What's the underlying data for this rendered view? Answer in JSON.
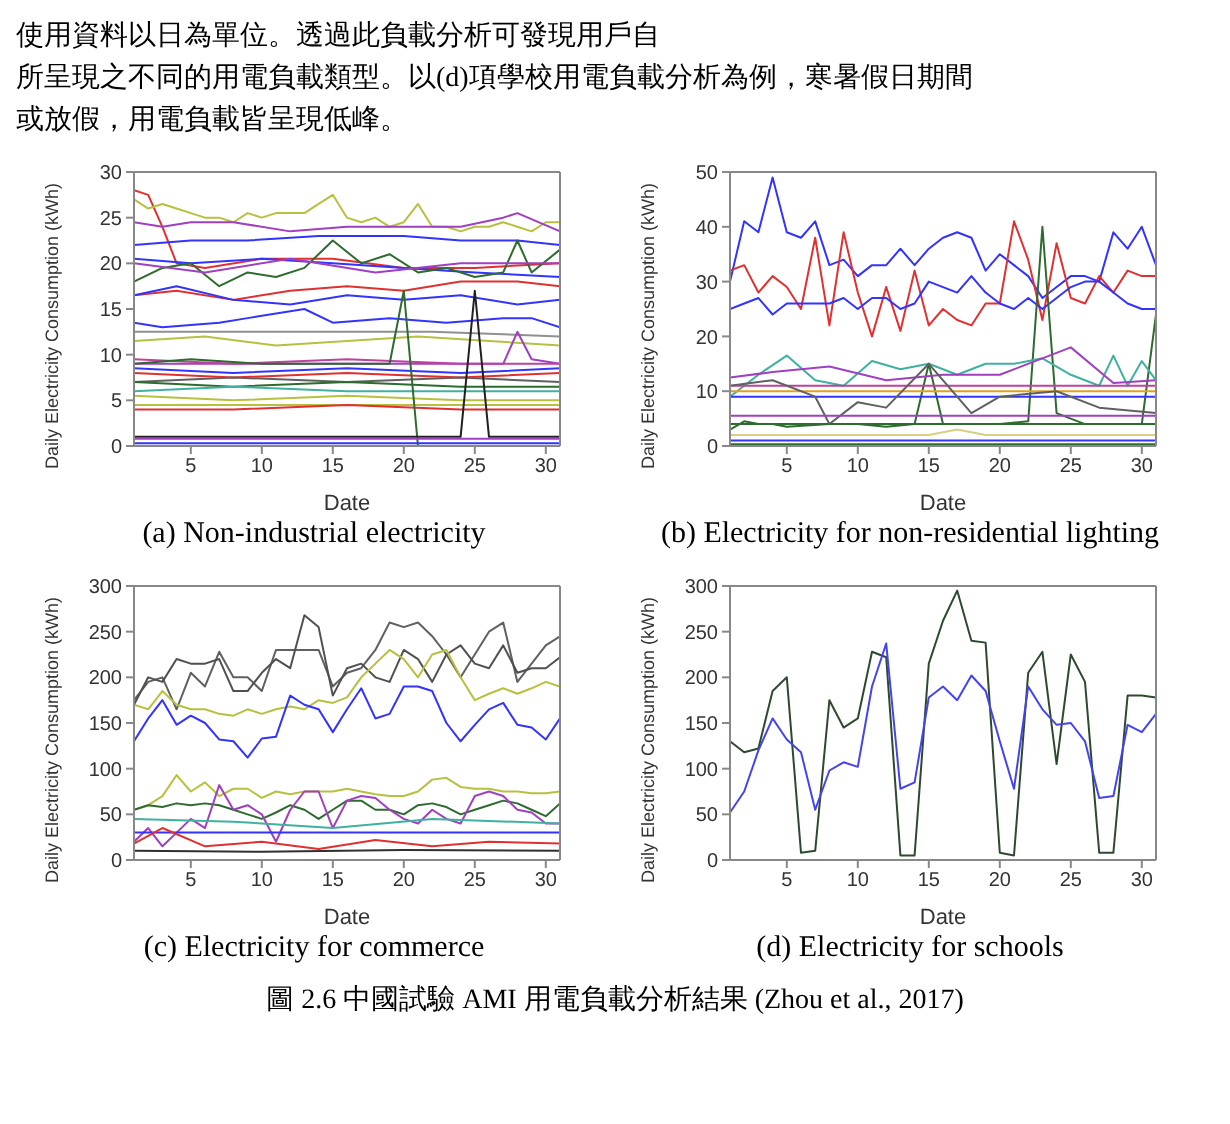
{
  "chart_data": [
    {
      "type": "line",
      "title": "(a) Non-industrial electricity",
      "xlabel": "Date",
      "ylabel": "Daily Electricity Consumption (kWh)",
      "xlim": [
        1,
        31
      ],
      "xticks": [
        5,
        10,
        15,
        20,
        25,
        30
      ],
      "ylim": [
        0,
        30
      ],
      "yticks": [
        0,
        5,
        10,
        15,
        20,
        25,
        30
      ],
      "annotations": [
        "使用資料以日為單位。透過此負載分析可發現用戶自",
        "所呈現之不同的用電負載類型。以(d)項學校用電負載分析為例，寒暑假日期間",
        "或放假，用電負載皆呈現低峰。"
      ],
      "x": [
        1,
        2,
        3,
        4,
        5,
        6,
        7,
        8,
        9,
        10,
        11,
        12,
        13,
        14,
        15,
        16,
        17,
        18,
        19,
        20,
        21,
        22,
        23,
        24,
        25,
        26,
        27,
        28,
        29,
        30,
        31
      ],
      "series": [
        {
          "color": "#e03030",
          "x": [
            1,
            2,
            3,
            4,
            6,
            10,
            15,
            20,
            25,
            31
          ],
          "values": [
            28,
            27.5,
            24,
            20,
            19.5,
            20.5,
            20.5,
            19.5,
            19.5,
            20
          ]
        },
        {
          "color": "#b8c040",
          "values": [
            27,
            26,
            26.5,
            26,
            25.5,
            25,
            25,
            24.5,
            25.5,
            25,
            25.5,
            25.5,
            25.5,
            26.5,
            27.5,
            25,
            24.5,
            25,
            24,
            24.5,
            26.5,
            24,
            24,
            23.5,
            24,
            24,
            24.5,
            24,
            23.5,
            24.5,
            24.5
          ]
        },
        {
          "color": "#a040c0",
          "x": [
            1,
            3,
            5,
            8,
            12,
            16,
            20,
            24,
            27,
            28,
            31
          ],
          "values": [
            24.5,
            24,
            24.5,
            24.5,
            23.5,
            24,
            24,
            24,
            25,
            25.5,
            23.5
          ]
        },
        {
          "color": "#3333ff",
          "x": [
            1,
            5,
            9,
            14,
            20,
            24,
            28,
            31
          ],
          "values": [
            22,
            22.5,
            22.5,
            23,
            23,
            22.5,
            22.5,
            22
          ]
        },
        {
          "color": "#3333ff",
          "x": [
            1,
            5,
            10,
            15,
            20,
            25,
            31
          ],
          "values": [
            20.5,
            20,
            20.5,
            20,
            19.5,
            19,
            18.5
          ]
        },
        {
          "color": "#2e6b2e",
          "x": [
            1,
            3,
            5,
            7,
            9,
            11,
            13,
            15,
            17,
            19,
            21,
            23,
            25,
            27,
            28,
            29,
            31
          ],
          "values": [
            18,
            19.5,
            20,
            17.5,
            19,
            18.5,
            19.5,
            22.5,
            20,
            21,
            19,
            19.5,
            18.5,
            19,
            22.5,
            19,
            21.5
          ]
        },
        {
          "color": "#a040c0",
          "x": [
            1,
            6,
            12,
            18,
            24,
            31
          ],
          "values": [
            20,
            19,
            20.5,
            19,
            20,
            20
          ]
        },
        {
          "color": "#e03030",
          "x": [
            1,
            4,
            8,
            12,
            16,
            20,
            24,
            28,
            31
          ],
          "values": [
            16.5,
            17,
            16,
            17,
            17.5,
            17,
            18,
            18,
            17.5
          ]
        },
        {
          "color": "#3333ff",
          "x": [
            1,
            4,
            8,
            12,
            16,
            20,
            24,
            28,
            31
          ],
          "values": [
            16.5,
            17.5,
            16,
            15.5,
            16.5,
            16,
            16.5,
            15.5,
            16
          ]
        },
        {
          "color": "#3333ff",
          "x": [
            1,
            3,
            7,
            9,
            13,
            15,
            19,
            23,
            27,
            29,
            31
          ],
          "values": [
            13.5,
            13,
            13.5,
            14,
            15,
            13.5,
            14,
            13.5,
            14,
            14,
            13
          ]
        },
        {
          "color": "#909090",
          "x": [
            1,
            8,
            15,
            22,
            31
          ],
          "values": [
            12.5,
            12.5,
            12.5,
            12.5,
            12
          ]
        },
        {
          "color": "#b8c040",
          "x": [
            1,
            6,
            11,
            16,
            21,
            26,
            31
          ],
          "values": [
            11.5,
            12,
            11,
            11.5,
            12,
            11.5,
            11
          ]
        },
        {
          "color": "#a040c0",
          "x": [
            1,
            10,
            20,
            27,
            28,
            29,
            31
          ],
          "values": [
            9,
            9,
            9,
            9,
            12.5,
            9.5,
            9
          ]
        },
        {
          "color": "#c040a0",
          "x": [
            1,
            8,
            16,
            24,
            31
          ],
          "values": [
            9.5,
            9,
            9.5,
            9,
            9
          ]
        },
        {
          "color": "#3333ff",
          "x": [
            1,
            8,
            16,
            24,
            31
          ],
          "values": [
            8.5,
            8,
            8.5,
            8,
            8.5
          ]
        },
        {
          "color": "#e03030",
          "x": [
            1,
            8,
            16,
            24,
            31
          ],
          "values": [
            8,
            7.5,
            8,
            7.5,
            8
          ]
        },
        {
          "color": "#606060",
          "x": [
            1,
            8,
            16,
            24,
            31
          ],
          "values": [
            7,
            7.5,
            7,
            7.5,
            7
          ]
        },
        {
          "color": "#2e6b2e",
          "x": [
            1,
            8,
            16,
            24,
            31
          ],
          "values": [
            7,
            6.5,
            7,
            6.5,
            6.5
          ]
        },
        {
          "color": "#40b0a0",
          "x": [
            1,
            8,
            16,
            24,
            31
          ],
          "values": [
            6,
            6.5,
            6,
            6,
            6
          ]
        },
        {
          "color": "#b8c040",
          "x": [
            1,
            8,
            16,
            24,
            31
          ],
          "values": [
            5.5,
            5,
            5.5,
            5,
            5
          ]
        },
        {
          "color": "#b8c040",
          "x": [
            1,
            8,
            16,
            24,
            31
          ],
          "values": [
            4.5,
            4.5,
            4.5,
            4.5,
            4.5
          ]
        },
        {
          "color": "#e03030",
          "x": [
            1,
            8,
            16,
            24,
            31
          ],
          "values": [
            4,
            4,
            4.5,
            4,
            4
          ]
        },
        {
          "color": "#2e6b2e",
          "x": [
            1,
            5,
            10,
            15,
            19,
            20,
            21,
            31
          ],
          "values": [
            9,
            9.5,
            9,
            9,
            9,
            17,
            0,
            0
          ]
        },
        {
          "color": "#202020",
          "x": [
            1,
            24,
            25,
            26,
            31
          ],
          "values": [
            1,
            1,
            17,
            1,
            1
          ]
        },
        {
          "color": "#a040c0",
          "x": [
            1,
            31
          ],
          "values": [
            0.8,
            0.8
          ]
        },
        {
          "color": "#3333ff",
          "x": [
            1,
            31
          ],
          "values": [
            0.3,
            0.3
          ]
        }
      ]
    },
    {
      "type": "line",
      "title": "(b) Electricity for non-residential lighting",
      "xlabel": "Date",
      "ylabel": "Daily Electricity Consumption (kWh)",
      "xlim": [
        1,
        31
      ],
      "xticks": [
        5,
        10,
        15,
        20,
        25,
        30
      ],
      "ylim": [
        0,
        50
      ],
      "yticks": [
        0,
        10,
        20,
        30,
        40,
        50
      ],
      "x": [
        1,
        2,
        3,
        4,
        5,
        6,
        7,
        8,
        9,
        10,
        11,
        12,
        13,
        14,
        15,
        16,
        17,
        18,
        19,
        20,
        21,
        22,
        23,
        24,
        25,
        26,
        27,
        28,
        29,
        30,
        31
      ],
      "series": [
        {
          "color": "#3333ff",
          "values": [
            30,
            41,
            39,
            49,
            39,
            38,
            41,
            33,
            34,
            31,
            33,
            33,
            36,
            33,
            36,
            38,
            39,
            38,
            32,
            35,
            33,
            31,
            27,
            29,
            31,
            31,
            30,
            39,
            36,
            40,
            33
          ]
        },
        {
          "color": "#e03030",
          "values": [
            32,
            33,
            28,
            31,
            29,
            25,
            38,
            22,
            39,
            28,
            20,
            29,
            21,
            32,
            22,
            25,
            23,
            22,
            26,
            26,
            41,
            34,
            23,
            37,
            27,
            26,
            31,
            28,
            32,
            31,
            31
          ]
        },
        {
          "color": "#3333ff",
          "values": [
            25,
            26,
            27,
            24,
            26,
            26,
            26,
            26,
            27,
            25,
            27,
            27,
            25,
            26,
            30,
            29,
            28,
            31,
            28,
            26,
            25,
            27,
            25,
            27,
            29,
            30,
            30,
            28,
            26,
            25,
            25
          ]
        },
        {
          "color": "#2e6b2e",
          "x": [
            1,
            2,
            3,
            4,
            5,
            8,
            10,
            12,
            14,
            15,
            16,
            20,
            22,
            23,
            24,
            26,
            28,
            30,
            31
          ],
          "values": [
            3,
            4.5,
            4,
            4,
            3.5,
            4,
            4,
            3.5,
            4,
            15,
            4,
            4,
            4.5,
            40,
            6,
            4,
            4,
            4,
            24
          ]
        },
        {
          "color": "#40b0a0",
          "x": [
            1,
            3,
            5,
            7,
            9,
            11,
            13,
            15,
            17,
            19,
            21,
            23,
            25,
            27,
            28,
            29,
            30,
            31
          ],
          "values": [
            9,
            13,
            16.5,
            12,
            11,
            15.5,
            14,
            15,
            13,
            15,
            15,
            16,
            13,
            11,
            16.5,
            11,
            15.5,
            12
          ]
        },
        {
          "color": "#a040c0",
          "x": [
            1,
            4,
            8,
            12,
            16,
            20,
            25,
            28,
            31
          ],
          "values": [
            12.5,
            13.5,
            14.5,
            12,
            13,
            13,
            18,
            11.5,
            12
          ]
        },
        {
          "color": "#c040a0",
          "x": [
            1,
            10,
            20,
            31
          ],
          "values": [
            11,
            11,
            11,
            11
          ]
        },
        {
          "color": "#e0a020",
          "x": [
            1,
            10,
            20,
            31
          ],
          "values": [
            10,
            10,
            10,
            10
          ]
        },
        {
          "color": "#3333ff",
          "x": [
            1,
            10,
            20,
            31
          ],
          "values": [
            9,
            9,
            9,
            9
          ]
        },
        {
          "color": "#606060",
          "x": [
            1,
            4,
            7,
            8,
            10,
            12,
            15,
            18,
            20,
            24,
            27,
            31
          ],
          "values": [
            11,
            12,
            9,
            4,
            8,
            7,
            15,
            6,
            9,
            10,
            7,
            6
          ]
        },
        {
          "color": "#a040c0",
          "x": [
            1,
            10,
            20,
            31
          ],
          "values": [
            5.5,
            5.5,
            5.5,
            5.5
          ]
        },
        {
          "color": "#2e6b2e",
          "x": [
            1,
            10,
            20,
            31
          ],
          "values": [
            4,
            4,
            4,
            4
          ]
        },
        {
          "color": "#d8d080",
          "x": [
            1,
            15,
            17,
            19,
            31
          ],
          "values": [
            2,
            2,
            3,
            2,
            2
          ]
        },
        {
          "color": "#3333ff",
          "x": [
            1,
            31
          ],
          "values": [
            1,
            1
          ]
        },
        {
          "color": "#2e6b2e",
          "x": [
            1,
            31
          ],
          "values": [
            0.3,
            0.3
          ]
        }
      ]
    },
    {
      "type": "line",
      "title": "(c) Electricity for commerce",
      "xlabel": "Date",
      "ylabel": "Daily Electricity Consumption (kWh)",
      "xlim": [
        1,
        31
      ],
      "xticks": [
        5,
        10,
        15,
        20,
        25,
        30
      ],
      "ylim": [
        0,
        300
      ],
      "yticks": [
        0,
        50,
        100,
        150,
        200,
        250,
        300
      ],
      "x": [
        1,
        2,
        3,
        4,
        5,
        6,
        7,
        8,
        9,
        10,
        11,
        12,
        13,
        14,
        15,
        16,
        17,
        18,
        19,
        20,
        21,
        22,
        23,
        24,
        25,
        26,
        27,
        28,
        29,
        30,
        31
      ],
      "series": [
        {
          "color": "#606060",
          "values": [
            175,
            195,
            200,
            165,
            205,
            190,
            228,
            200,
            200,
            185,
            230,
            230,
            230,
            230,
            190,
            205,
            210,
            230,
            260,
            255,
            260,
            245,
            225,
            200,
            225,
            250,
            260,
            195,
            215,
            235,
            245
          ]
        },
        {
          "color": "#505050",
          "values": [
            170,
            200,
            195,
            220,
            215,
            215,
            220,
            185,
            185,
            205,
            220,
            210,
            268,
            255,
            180,
            210,
            215,
            200,
            195,
            230,
            220,
            195,
            225,
            235,
            215,
            210,
            235,
            205,
            210,
            210,
            222
          ]
        },
        {
          "color": "#b8c040",
          "values": [
            170,
            165,
            185,
            170,
            165,
            165,
            160,
            158,
            165,
            160,
            165,
            168,
            165,
            175,
            172,
            178,
            200,
            215,
            230,
            220,
            200,
            225,
            230,
            200,
            175,
            182,
            188,
            182,
            188,
            195,
            190
          ]
        },
        {
          "color": "#3333ff",
          "values": [
            130,
            155,
            175,
            148,
            158,
            150,
            132,
            130,
            112,
            133,
            135,
            180,
            170,
            165,
            140,
            165,
            188,
            155,
            160,
            190,
            190,
            185,
            150,
            130,
            148,
            165,
            172,
            148,
            145,
            132,
            155
          ]
        },
        {
          "color": "#b8c040",
          "values": [
            55,
            60,
            70,
            93,
            75,
            85,
            70,
            78,
            78,
            68,
            75,
            72,
            75,
            75,
            75,
            78,
            75,
            72,
            70,
            70,
            75,
            88,
            90,
            80,
            78,
            78,
            75,
            75,
            73,
            73,
            75
          ]
        },
        {
          "color": "#2e6b2e",
          "values": [
            55,
            60,
            58,
            62,
            60,
            62,
            60,
            55,
            50,
            45,
            52,
            60,
            55,
            45,
            55,
            65,
            65,
            55,
            55,
            50,
            60,
            62,
            58,
            50,
            55,
            60,
            65,
            62,
            55,
            48,
            62
          ]
        },
        {
          "color": "#a040c0",
          "values": [
            20,
            35,
            15,
            30,
            45,
            35,
            82,
            55,
            60,
            50,
            20,
            55,
            75,
            75,
            35,
            65,
            70,
            68,
            55,
            45,
            40,
            55,
            45,
            40,
            70,
            75,
            70,
            55,
            52,
            40,
            40
          ]
        },
        {
          "color": "#40b0a0",
          "x": [
            1,
            8,
            15,
            22,
            31
          ],
          "values": [
            45,
            42,
            35,
            45,
            40
          ]
        },
        {
          "color": "#3333ff",
          "x": [
            1,
            10,
            20,
            31
          ],
          "values": [
            30,
            30,
            30,
            30
          ]
        },
        {
          "color": "#e03030",
          "x": [
            1,
            3,
            6,
            10,
            14,
            18,
            22,
            26,
            31
          ],
          "values": [
            18,
            35,
            15,
            20,
            12,
            22,
            15,
            20,
            18
          ]
        },
        {
          "color": "#303030",
          "x": [
            1,
            10,
            20,
            31
          ],
          "values": [
            10,
            9,
            11,
            10
          ]
        }
      ]
    },
    {
      "type": "line",
      "title": "(d) Electricity for schools",
      "xlabel": "Date",
      "ylabel": "Daily Electricity Consumption (kWh)",
      "xlim": [
        1,
        31
      ],
      "xticks": [
        5,
        10,
        15,
        20,
        25,
        30
      ],
      "ylim": [
        0,
        300
      ],
      "yticks": [
        0,
        50,
        100,
        150,
        200,
        250,
        300
      ],
      "annotations": [
        "圖 2.6 中國試驗 AMI 用電負載分析結果 (Zhou et al., 2017)"
      ],
      "x": [
        1,
        2,
        3,
        4,
        5,
        6,
        7,
        8,
        9,
        10,
        11,
        12,
        13,
        14,
        15,
        16,
        17,
        18,
        19,
        20,
        21,
        22,
        23,
        24,
        25,
        26,
        27,
        28,
        29,
        30,
        31
      ],
      "series": [
        {
          "color": "#2e4a2e",
          "values": [
            130,
            118,
            122,
            185,
            200,
            8,
            10,
            175,
            145,
            155,
            228,
            222,
            5,
            5,
            215,
            262,
            295,
            240,
            238,
            8,
            5,
            205,
            228,
            105,
            225,
            195,
            8,
            8,
            180,
            180,
            178
          ]
        },
        {
          "color": "#4444ee",
          "values": [
            52,
            75,
            120,
            155,
            132,
            118,
            55,
            98,
            107,
            102,
            190,
            237,
            78,
            85,
            178,
            190,
            175,
            202,
            185,
            130,
            78,
            190,
            165,
            148,
            150,
            130,
            68,
            70,
            148,
            140,
            160
          ]
        }
      ]
    }
  ]
}
